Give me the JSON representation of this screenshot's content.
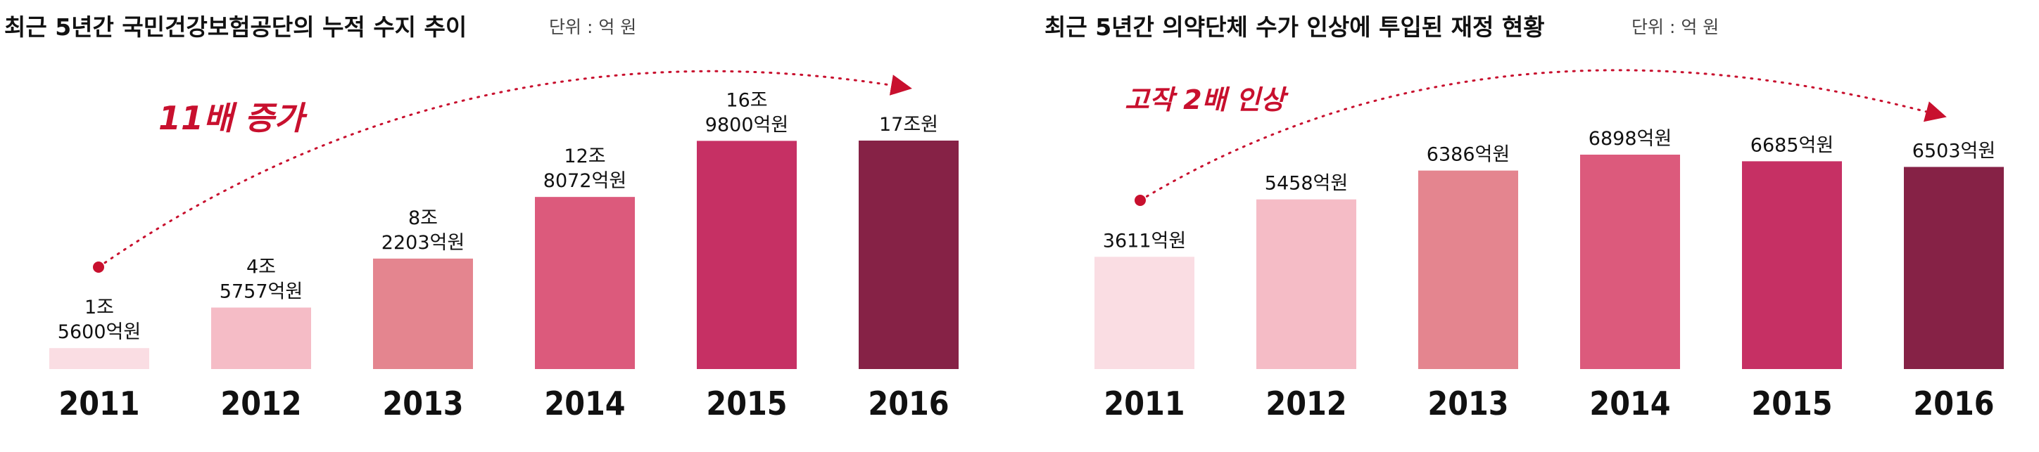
{
  "chart_data": [
    {
      "type": "bar",
      "title": "최근 5년간 국민건강보험공단의 누적 수지 추이",
      "unit": "단위 : 억 원",
      "categories": [
        "2011",
        "2012",
        "2013",
        "2014",
        "2015",
        "2016"
      ],
      "values": [
        15600,
        45757,
        82203,
        128072,
        169800,
        170000
      ],
      "data_labels": [
        [
          "1조",
          "5600억원"
        ],
        [
          "4조",
          "5757억원"
        ],
        [
          "8조",
          "2203억원"
        ],
        [
          "12조",
          "8072억원"
        ],
        [
          "16조",
          "9800억원"
        ],
        [
          "17조원"
        ]
      ],
      "colors": [
        "#fadde3",
        "#f5bcc6",
        "#e4858f",
        "#dc5a7c",
        "#c63064",
        "#862246"
      ],
      "annotation": {
        "text": "11배 증가",
        "color": "#c8102e"
      },
      "ylim": [
        0,
        170000
      ],
      "grid": false,
      "legend": "none"
    },
    {
      "type": "bar",
      "title": "최근 5년간 의약단체 수가 인상에 투입된 재정 현황",
      "unit": "단위 : 억 원",
      "categories": [
        "2011",
        "2012",
        "2013",
        "2014",
        "2015",
        "2016"
      ],
      "values": [
        3611,
        5458,
        6386,
        6898,
        6685,
        6503
      ],
      "data_labels": [
        [
          "3611억원"
        ],
        [
          "5458억원"
        ],
        [
          "6386억원"
        ],
        [
          "6898억원"
        ],
        [
          "6685억원"
        ],
        [
          "6503억원"
        ]
      ],
      "colors": [
        "#fadde3",
        "#f5bcc6",
        "#e4858f",
        "#dc5a7c",
        "#c63064",
        "#862246"
      ],
      "annotation": {
        "text": "고작 2배 인상",
        "color": "#c8102e"
      },
      "ylim": [
        0,
        6898
      ],
      "grid": false,
      "legend": "none"
    }
  ]
}
